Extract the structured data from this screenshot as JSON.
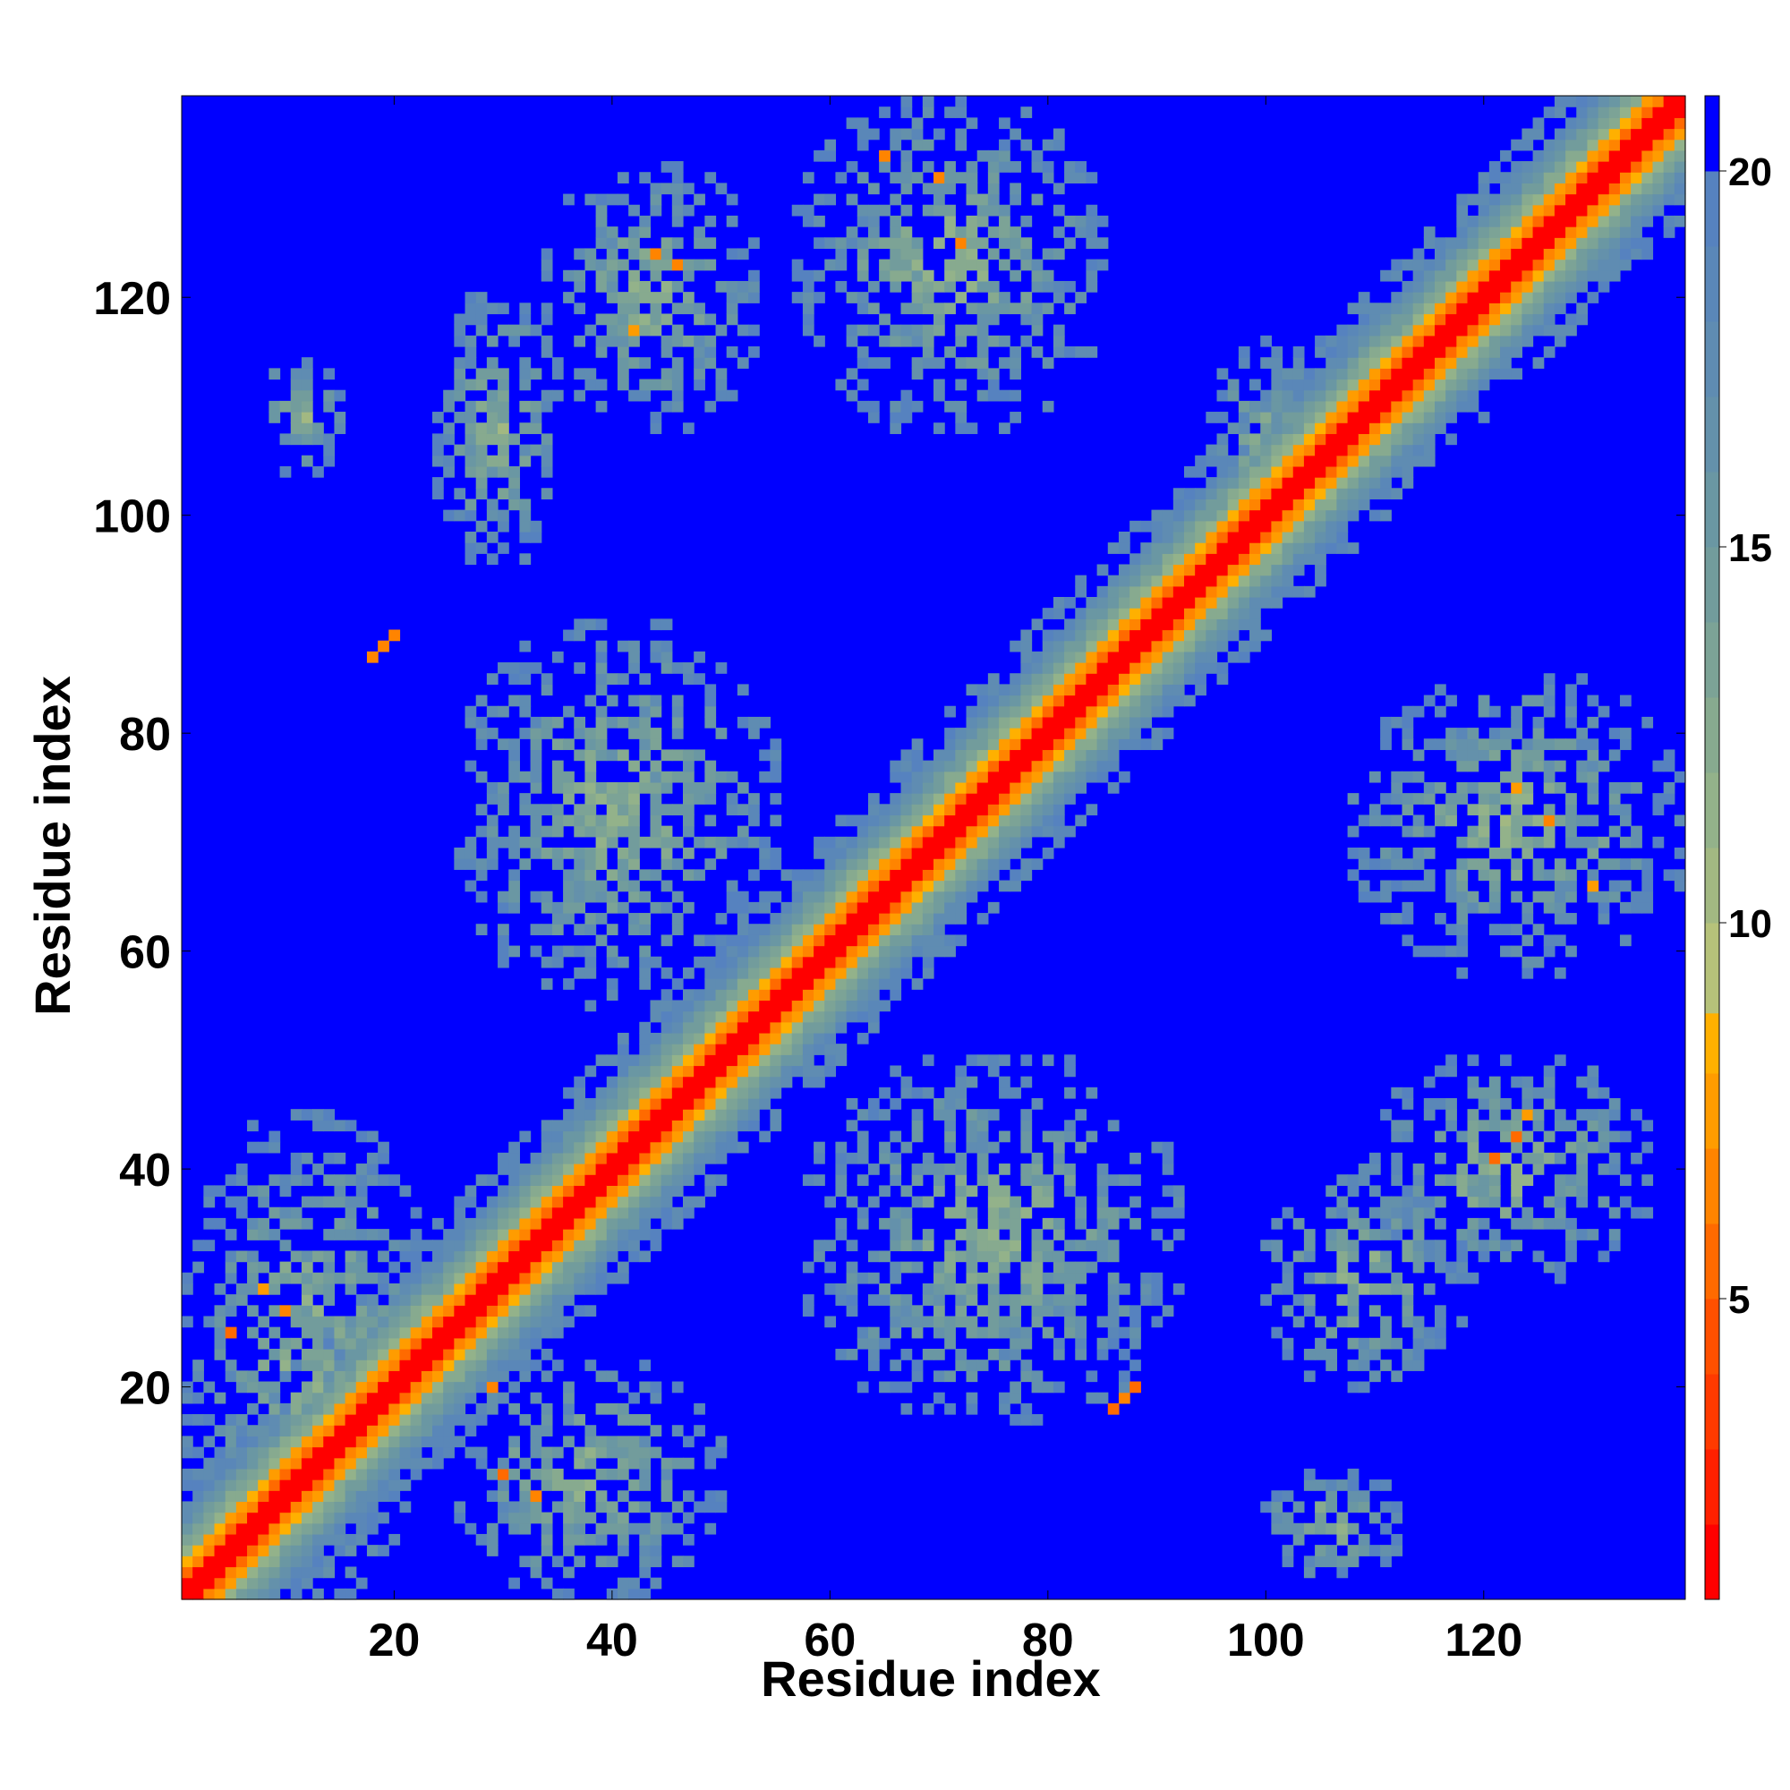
{
  "chart_data": {
    "type": "heatmap",
    "title": "",
    "xlabel": "Residue index",
    "ylabel": "Residue index",
    "xlim": [
      1,
      138
    ],
    "ylim": [
      1,
      138
    ],
    "n_residues": 138,
    "x_ticks": [
      20,
      40,
      60,
      80,
      100,
      120
    ],
    "y_ticks": [
      20,
      40,
      60,
      80,
      100,
      120
    ],
    "colorbar": {
      "range": [
        1,
        21
      ],
      "ticks": [
        5,
        10,
        15,
        20
      ],
      "tick_labels": [
        "5",
        "10",
        "15",
        "20"
      ],
      "levels": [
        {
          "max": 2,
          "color": "#ff0000"
        },
        {
          "max": 3,
          "color": "#ff2000"
        },
        {
          "max": 4,
          "color": "#ff3a00"
        },
        {
          "max": 5,
          "color": "#ff5000"
        },
        {
          "max": 6,
          "color": "#ff6a00"
        },
        {
          "max": 7,
          "color": "#ff8400"
        },
        {
          "max": 8,
          "color": "#ff9c00"
        },
        {
          "max": 8.8,
          "color": "#ffb000"
        },
        {
          "max": 10,
          "color": "#b6c27a"
        },
        {
          "max": 11,
          "color": "#a2b882"
        },
        {
          "max": 12,
          "color": "#93b28a"
        },
        {
          "max": 13,
          "color": "#87aa8f"
        },
        {
          "max": 14,
          "color": "#7ca396"
        },
        {
          "max": 15,
          "color": "#729c9c"
        },
        {
          "max": 16,
          "color": "#6a97a3"
        },
        {
          "max": 17,
          "color": "#6491ab"
        },
        {
          "max": 18,
          "color": "#5f8cb2"
        },
        {
          "max": 19,
          "color": "#5a87b8"
        },
        {
          "max": 20,
          "color": "#5682bf"
        },
        {
          "max": 21,
          "color": "#0000ff"
        }
      ]
    },
    "background_value": 21,
    "diagonal_band": {
      "core_halfwidth": 1,
      "orange_halfwidth": 3,
      "green_halfwidth": 8
    },
    "contact_regions": [
      {
        "x": [
          1,
          23
        ],
        "y": [
          1,
          45
        ],
        "note": "N-terminal block around diagonal"
      },
      {
        "x": [
          25,
          50
        ],
        "y": [
          1,
          22
        ]
      },
      {
        "x": [
          24,
          35
        ],
        "y": [
          96,
          120
        ]
      },
      {
        "x": [
          34,
          53
        ],
        "y": [
          108,
          132
        ]
      },
      {
        "x": [
          57,
          85
        ],
        "y": [
          108,
          138
        ]
      },
      {
        "x": [
          8,
          15
        ],
        "y": [
          104,
          114
        ]
      },
      {
        "x": [
          26,
          55
        ],
        "y": [
          55,
          90
        ]
      },
      {
        "x": [
          58,
          92
        ],
        "y": [
          17,
          50
        ]
      },
      {
        "x": [
          100,
          118
        ],
        "y": [
          20,
          40
        ]
      },
      {
        "x": [
          110,
          135
        ],
        "y": [
          30,
          50
        ]
      },
      {
        "x": [
          108,
          138
        ],
        "y": [
          58,
          85
        ]
      },
      {
        "x": [
          100,
          112
        ],
        "y": [
          3,
          12
        ]
      },
      {
        "x": [
          95,
          105
        ],
        "y": [
          92,
          116
        ]
      }
    ],
    "hotspots": [
      {
        "x": 19,
        "y": 88
      },
      {
        "x": 18,
        "y": 87
      },
      {
        "x": 20,
        "y": 89
      },
      {
        "x": 87,
        "y": 19
      },
      {
        "x": 88,
        "y": 20
      },
      {
        "x": 86,
        "y": 18
      },
      {
        "x": 123,
        "y": 43
      },
      {
        "x": 121,
        "y": 41
      },
      {
        "x": 124,
        "y": 45
      },
      {
        "x": 126,
        "y": 72
      },
      {
        "x": 130,
        "y": 66
      },
      {
        "x": 123,
        "y": 75
      },
      {
        "x": 44,
        "y": 124
      },
      {
        "x": 46,
        "y": 123
      },
      {
        "x": 42,
        "y": 117
      },
      {
        "x": 65,
        "y": 133
      },
      {
        "x": 70,
        "y": 131
      },
      {
        "x": 72,
        "y": 125
      },
      {
        "x": 29,
        "y": 20
      },
      {
        "x": 30,
        "y": 12
      },
      {
        "x": 33,
        "y": 10
      },
      {
        "x": 8,
        "y": 29
      },
      {
        "x": 10,
        "y": 27
      },
      {
        "x": 5,
        "y": 25
      }
    ]
  }
}
